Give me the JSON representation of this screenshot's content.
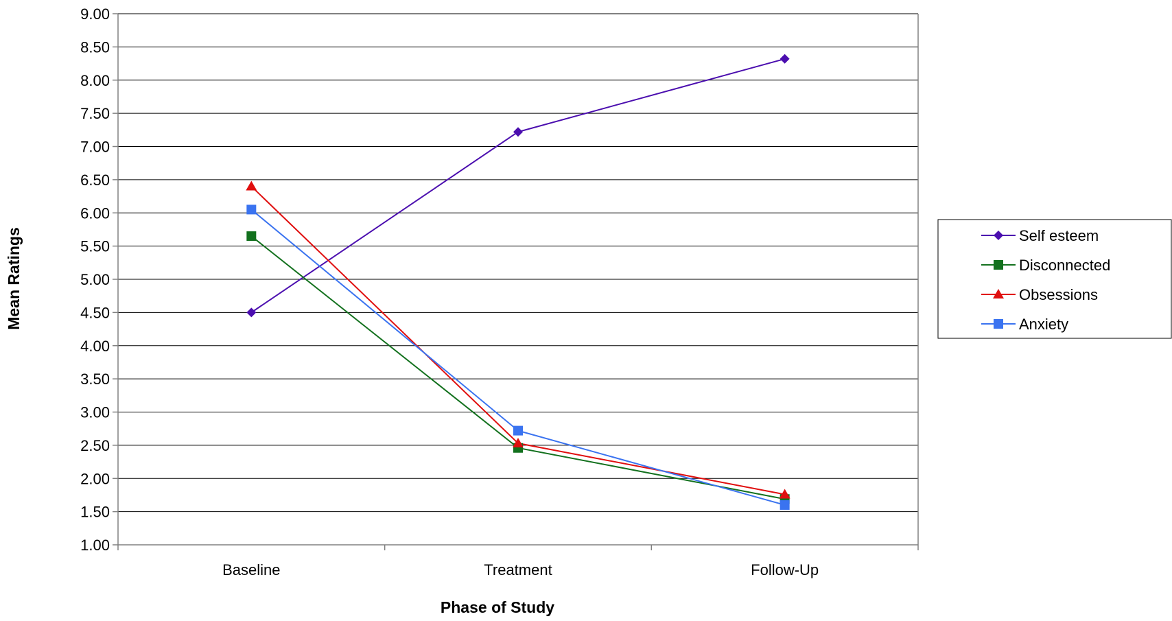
{
  "chart_data": {
    "type": "line",
    "title": "",
    "xlabel": "Phase of Study",
    "ylabel": "Mean Ratings",
    "categories": [
      "Baseline",
      "Treatment",
      "Follow-Up"
    ],
    "ylim": [
      1.0,
      9.0
    ],
    "yticks": [
      "1.00",
      "1.50",
      "2.00",
      "2.50",
      "3.00",
      "3.50",
      "4.00",
      "4.50",
      "5.00",
      "5.50",
      "6.00",
      "6.50",
      "7.00",
      "7.50",
      "8.00",
      "8.50",
      "9.00"
    ],
    "grid": true,
    "legend_position": "right",
    "series": [
      {
        "name": "Self esteem",
        "values": [
          4.5,
          7.22,
          8.32
        ],
        "color": "#4B0EAF",
        "marker": "diamond"
      },
      {
        "name": "Disconnected",
        "values": [
          5.65,
          2.46,
          1.69
        ],
        "color": "#13711E",
        "marker": "square"
      },
      {
        "name": "Obsessions",
        "values": [
          6.4,
          2.53,
          1.76
        ],
        "color": "#E00F0F",
        "marker": "triangle"
      },
      {
        "name": "Anxiety",
        "values": [
          6.05,
          2.72,
          1.6
        ],
        "color": "#3A73F0",
        "marker": "square"
      }
    ]
  }
}
